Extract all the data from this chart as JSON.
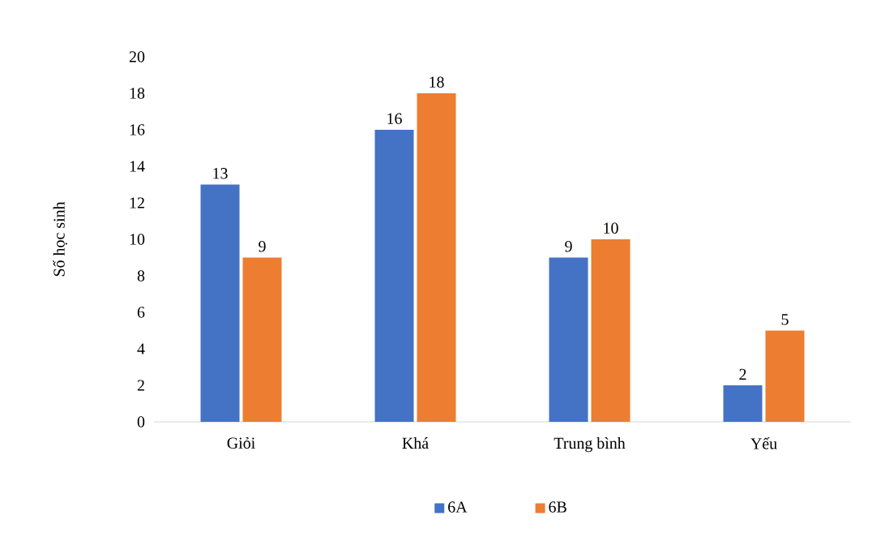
{
  "chart_data": {
    "type": "bar",
    "ylabel": "Số học sinh",
    "categories": [
      "Giỏi",
      "Khá",
      "Trung bình",
      "Yếu"
    ],
    "series": [
      {
        "name": "6A",
        "color": "#4472c4",
        "values": [
          13,
          16,
          9,
          2
        ]
      },
      {
        "name": "6B",
        "color": "#ed7d31",
        "values": [
          9,
          18,
          10,
          5
        ]
      }
    ],
    "ylim": [
      0,
      20
    ],
    "yticks": [
      0,
      2,
      4,
      6,
      8,
      10,
      12,
      14,
      16,
      18,
      20
    ],
    "data_labels": true,
    "legend": "bottom"
  }
}
